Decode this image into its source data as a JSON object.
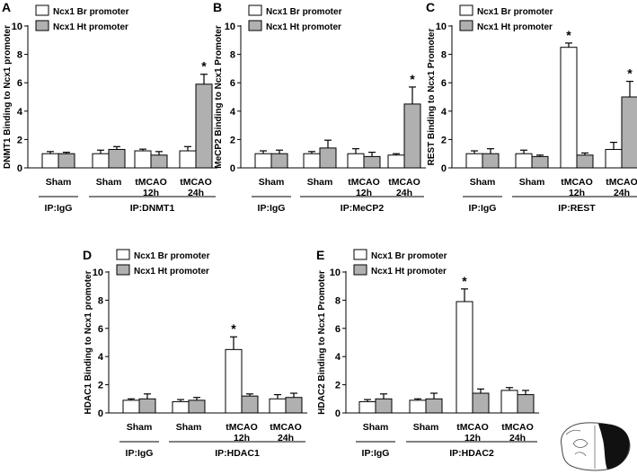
{
  "chart_data": [
    {
      "id": "A",
      "type": "bar",
      "panel_label": "A",
      "ylabel": "DNMT1 Binding to Ncx1 promoter",
      "ylim": [
        0,
        10
      ],
      "yticks": [
        "0",
        "2",
        "4",
        "6",
        "8",
        "10"
      ],
      "legend": [
        "Ncx1 Br promoter",
        "Ncx1 Ht promoter"
      ],
      "categories": [
        [
          "Sham"
        ],
        [
          "Sham"
        ],
        [
          "tMCAO",
          "12h"
        ],
        [
          "tMCAO",
          "24h"
        ]
      ],
      "series": [
        {
          "name": "Ncx1 Br promoter",
          "values": [
            1.0,
            1.0,
            1.2,
            1.2
          ],
          "errors": [
            0.15,
            0.25,
            0.12,
            0.3
          ]
        },
        {
          "name": "Ncx1 Ht promoter",
          "values": [
            1.0,
            1.3,
            0.9,
            5.9
          ],
          "errors": [
            0.1,
            0.2,
            0.25,
            0.7
          ]
        }
      ],
      "annotations": [
        {
          "group": 3,
          "bar": 1,
          "text": "*"
        }
      ],
      "groups": [
        {
          "label": "IP:IgG",
          "from": 0,
          "to": 0
        },
        {
          "label": "IP:DNMT1",
          "from": 1,
          "to": 3
        }
      ]
    },
    {
      "id": "B",
      "type": "bar",
      "panel_label": "B",
      "ylabel": "MeCP2 Binding to Ncx1 Promoter",
      "ylim": [
        0,
        10
      ],
      "yticks": [
        "0",
        "2",
        "4",
        "6",
        "8",
        "10"
      ],
      "legend": [
        "Ncx1 Br promoter",
        "Ncx1 Ht promoter"
      ],
      "categories": [
        [
          "Sham"
        ],
        [
          "Sham"
        ],
        [
          "tMCAO",
          "12h"
        ],
        [
          "tMCAO",
          "24h"
        ]
      ],
      "series": [
        {
          "name": "Ncx1 Br promoter",
          "values": [
            1.0,
            1.0,
            1.0,
            0.9
          ],
          "errors": [
            0.2,
            0.15,
            0.35,
            0.1
          ]
        },
        {
          "name": "Ncx1 Ht promoter",
          "values": [
            1.0,
            1.4,
            0.8,
            4.5
          ],
          "errors": [
            0.25,
            0.55,
            0.3,
            1.2
          ]
        }
      ],
      "annotations": [
        {
          "group": 3,
          "bar": 1,
          "text": "*"
        }
      ],
      "groups": [
        {
          "label": "IP:IgG",
          "from": 0,
          "to": 0
        },
        {
          "label": "IP:MeCP2",
          "from": 1,
          "to": 3
        }
      ]
    },
    {
      "id": "C",
      "type": "bar",
      "panel_label": "C",
      "ylabel": "REST Binding to Ncx1 Promoter",
      "ylim": [
        0,
        10
      ],
      "yticks": [
        "0",
        "2",
        "4",
        "6",
        "8",
        "10"
      ],
      "legend": [
        "Ncx1 Br promoter",
        "Ncx1 Ht promoter"
      ],
      "categories": [
        [
          "Sham"
        ],
        [
          "Sham"
        ],
        [
          "tMCAO",
          "12h"
        ],
        [
          "tMCAO",
          "24h"
        ]
      ],
      "series": [
        {
          "name": "Ncx1 Br promoter",
          "values": [
            1.0,
            1.0,
            8.5,
            1.3
          ],
          "errors": [
            0.2,
            0.25,
            0.3,
            0.5
          ]
        },
        {
          "name": "Ncx1 Ht promoter",
          "values": [
            1.0,
            0.8,
            0.9,
            5.0
          ],
          "errors": [
            0.35,
            0.1,
            0.15,
            1.1
          ]
        }
      ],
      "annotations": [
        {
          "group": 2,
          "bar": 0,
          "text": "*"
        },
        {
          "group": 3,
          "bar": 1,
          "text": "*"
        }
      ],
      "groups": [
        {
          "label": "IP:IgG",
          "from": 0,
          "to": 0
        },
        {
          "label": "IP:REST",
          "from": 1,
          "to": 3
        }
      ]
    },
    {
      "id": "D",
      "type": "bar",
      "panel_label": "D",
      "ylabel": "HDAC1 Binding to Ncx1 promoter",
      "ylim": [
        0,
        10
      ],
      "yticks": [
        "0",
        "2",
        "4",
        "6",
        "8",
        "10"
      ],
      "legend": [
        "Ncx1 Br promoter",
        "Ncx1 Ht promoter"
      ],
      "categories": [
        [
          "Sham"
        ],
        [
          "Sham"
        ],
        [
          "tMCAO",
          "12h"
        ],
        [
          "tMCAO",
          "24h"
        ]
      ],
      "series": [
        {
          "name": "Ncx1 Br promoter",
          "values": [
            0.9,
            0.8,
            4.5,
            1.0
          ],
          "errors": [
            0.1,
            0.15,
            0.9,
            0.3
          ]
        },
        {
          "name": "Ncx1 Ht promoter",
          "values": [
            1.0,
            0.9,
            1.2,
            1.1
          ],
          "errors": [
            0.35,
            0.2,
            0.15,
            0.3
          ]
        }
      ],
      "annotations": [
        {
          "group": 2,
          "bar": 0,
          "text": "*"
        }
      ],
      "groups": [
        {
          "label": "IP:IgG",
          "from": 0,
          "to": 0
        },
        {
          "label": "IP:HDAC1",
          "from": 1,
          "to": 3
        }
      ]
    },
    {
      "id": "E",
      "type": "bar",
      "panel_label": "E",
      "ylabel": "HDAC2 Binding to Ncx1 Promoter",
      "ylim": [
        0,
        10
      ],
      "yticks": [
        "0",
        "2",
        "4",
        "6",
        "8",
        "10"
      ],
      "legend": [
        "Ncx1 Br promoter",
        "Ncx1 Ht promoter"
      ],
      "categories": [
        [
          "Sham"
        ],
        [
          "Sham"
        ],
        [
          "tMCAO",
          "12h"
        ],
        [
          "tMCAO",
          "24h"
        ]
      ],
      "series": [
        {
          "name": "Ncx1 Br promoter",
          "values": [
            0.8,
            0.9,
            7.9,
            1.6
          ],
          "errors": [
            0.15,
            0.1,
            0.9,
            0.2
          ]
        },
        {
          "name": "Ncx1 Ht promoter",
          "values": [
            1.0,
            1.0,
            1.4,
            1.3
          ],
          "errors": [
            0.35,
            0.4,
            0.3,
            0.3
          ]
        }
      ],
      "annotations": [
        {
          "group": 2,
          "bar": 0,
          "text": "*"
        }
      ],
      "groups": [
        {
          "label": "IP:IgG",
          "from": 0,
          "to": 0
        },
        {
          "label": "IP:HDAC2",
          "from": 1,
          "to": 3
        }
      ]
    }
  ],
  "colors": {
    "br_fill": "#ffffff",
    "ht_fill": "#b0b0b0",
    "stroke": "#000000"
  },
  "icon": "brain-section-icon"
}
